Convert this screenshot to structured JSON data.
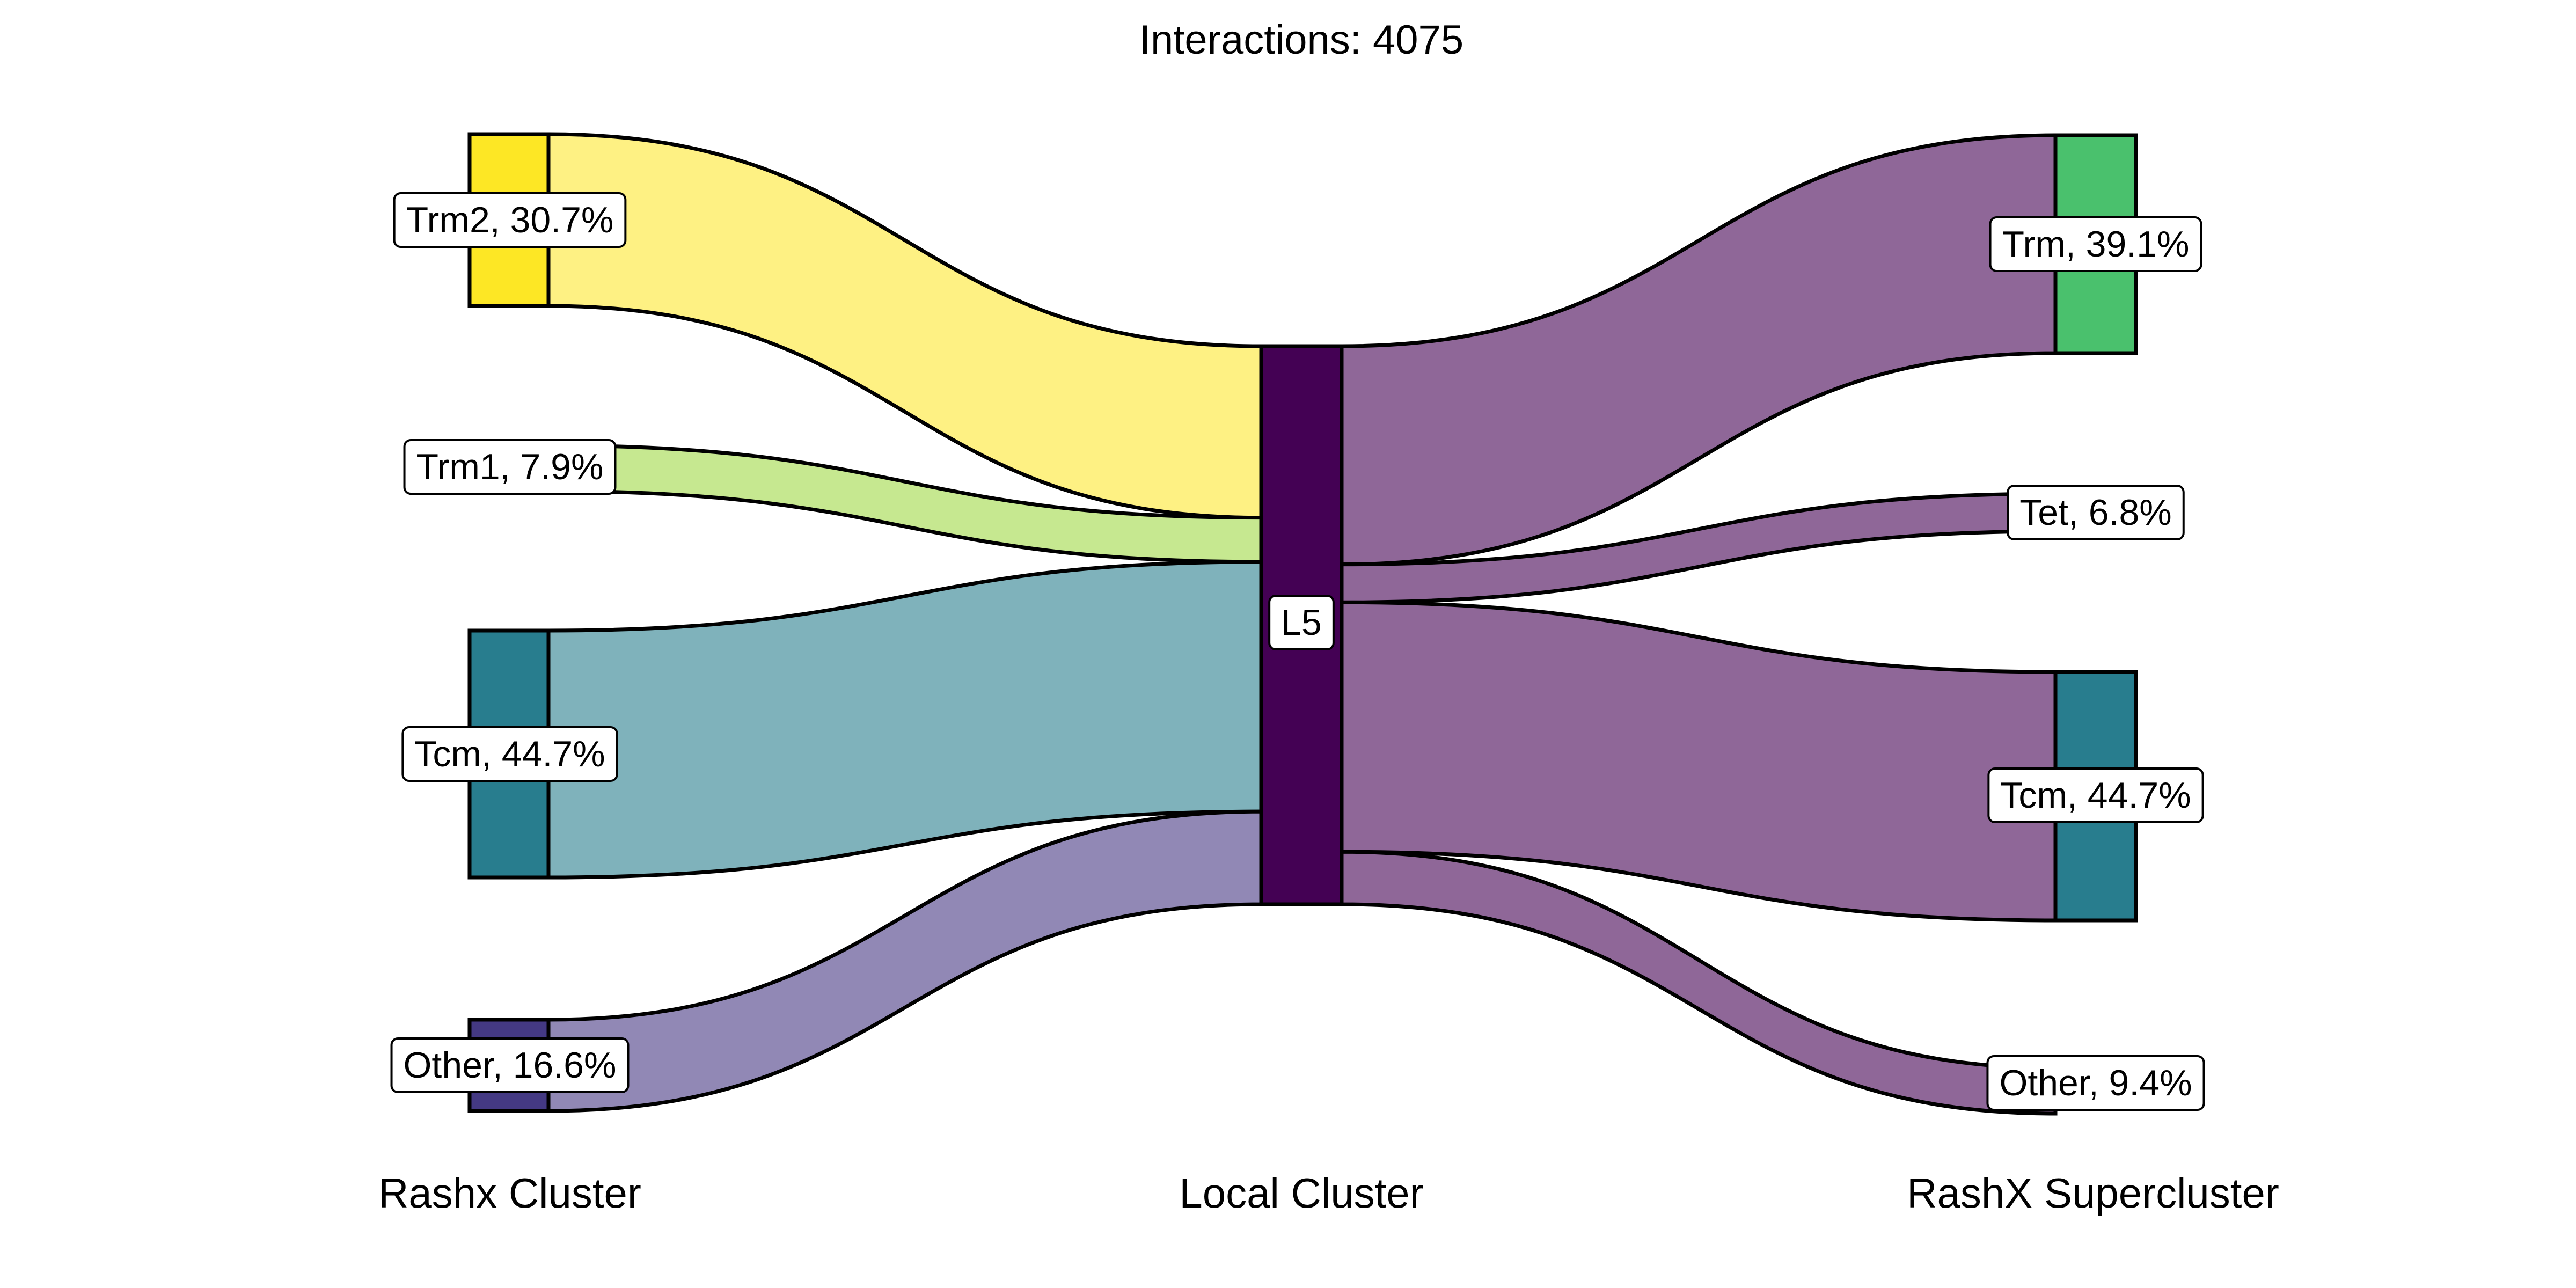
{
  "chart_data": {
    "type": "sankey",
    "title": "Interactions: 4075",
    "total": 4075,
    "stages": [
      "Rashx Cluster",
      "Local Cluster",
      "RashX Supercluster"
    ],
    "left_nodes": [
      {
        "name": "Trm2",
        "label": "Trm2, 30.7%",
        "percent": 30.7,
        "color": "#FDE725"
      },
      {
        "name": "Trm1",
        "label": "Trm1, 7.9%",
        "percent": 7.9,
        "color": "#C2E88A"
      },
      {
        "name": "Tcm",
        "label": "Tcm, 44.7%",
        "percent": 44.7,
        "color": "#287D8E"
      },
      {
        "name": "Other",
        "label": "Other, 16.6%",
        "percent": 16.6,
        "color": "#443983"
      }
    ],
    "center_node": {
      "name": "L5",
      "label": "L5",
      "color": "#440154"
    },
    "right_nodes": [
      {
        "name": "Trm",
        "label": "Trm, 39.1%",
        "percent": 39.1,
        "color": "#4AC16D"
      },
      {
        "name": "Tet",
        "label": "Tet, 6.8%",
        "percent": 6.8,
        "color": "#C2E88A"
      },
      {
        "name": "Tcm",
        "label": "Tcm, 44.7%",
        "percent": 44.7,
        "color": "#287D8E"
      },
      {
        "name": "Other",
        "label": "Other, 9.4%",
        "percent": 9.4,
        "color": "#443983"
      }
    ],
    "left_flow_colors": [
      "#FEF183",
      "#C6E890",
      "#7FB2BB",
      "#9188B5"
    ],
    "right_flow_color": "#8F6798"
  }
}
